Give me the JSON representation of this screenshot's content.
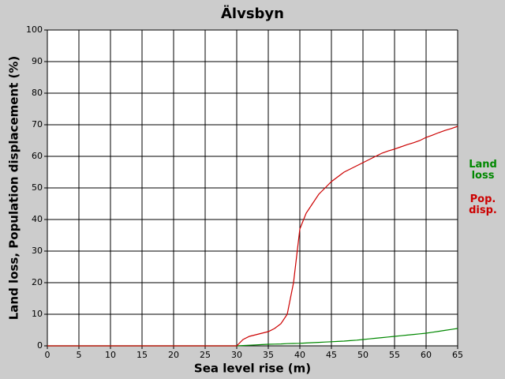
{
  "chart_data": {
    "type": "line",
    "title": "Älvsbyn",
    "x_label": "Sea level rise (m)",
    "y_label": "Land loss, Population displacement (%)",
    "x": [
      0,
      30,
      31,
      32,
      33,
      34,
      35,
      36,
      37,
      38,
      39,
      40,
      41,
      42,
      43,
      44,
      45,
      46,
      47,
      48,
      49,
      50,
      51,
      52,
      53,
      54,
      55,
      56,
      57,
      58,
      59,
      60,
      61,
      62,
      63,
      64,
      65
    ],
    "series": [
      {
        "name": "Land loss",
        "color": "#008800",
        "values": [
          0,
          0,
          0.1,
          0.2,
          0.3,
          0.4,
          0.5,
          0.55,
          0.6,
          0.7,
          0.75,
          0.8,
          0.9,
          1.0,
          1.1,
          1.2,
          1.3,
          1.4,
          1.5,
          1.65,
          1.8,
          2.0,
          2.2,
          2.4,
          2.6,
          2.8,
          3.0,
          3.2,
          3.4,
          3.6,
          3.8,
          4.0,
          4.3,
          4.6,
          4.9,
          5.2,
          5.5
        ]
      },
      {
        "name": "Pop. disp.",
        "color": "#cc0000",
        "values": [
          0,
          0,
          2,
          3,
          3.5,
          4,
          4.5,
          5.5,
          7,
          10,
          20,
          37,
          42,
          45,
          48,
          50,
          52,
          53.5,
          55,
          56,
          57,
          58,
          59,
          60,
          61,
          61.7,
          62.3,
          63,
          63.7,
          64.3,
          65,
          66,
          66.7,
          67.5,
          68.2,
          68.8,
          69.5
        ]
      }
    ],
    "xlim": [
      0,
      65
    ],
    "ylim": [
      0,
      100
    ],
    "xticks": [
      0,
      5,
      10,
      15,
      20,
      25,
      30,
      35,
      40,
      45,
      50,
      55,
      60,
      65
    ],
    "yticks": [
      0,
      10,
      20,
      30,
      40,
      50,
      60,
      70,
      80,
      90,
      100
    ],
    "grid": true
  }
}
